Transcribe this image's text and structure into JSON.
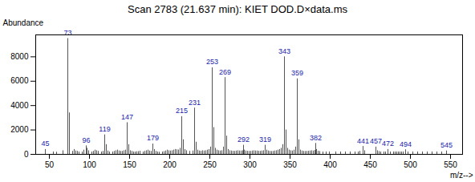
{
  "chart_data": {
    "type": "stem",
    "title": "Scan 2783 (21.637 min): KIET DOD.D×data.ms",
    "xlabel": "m/z-->",
    "ylabel": "Abundance",
    "color": "#555555",
    "xlim": [
      33,
      565
    ],
    "ylim": [
      0,
      9800
    ],
    "xticks": [
      50,
      100,
      150,
      200,
      250,
      300,
      350,
      400,
      450,
      500,
      550
    ],
    "yticks": [
      0,
      2000,
      4000,
      6000,
      8000
    ],
    "x": [
      45,
      55,
      59,
      67,
      73,
      75,
      79,
      81,
      83,
      85,
      87,
      91,
      93,
      96,
      97,
      99,
      103,
      105,
      107,
      109,
      111,
      115,
      117,
      119,
      121,
      123,
      125,
      129,
      131,
      133,
      135,
      137,
      139,
      141,
      143,
      145,
      147,
      149,
      151,
      153,
      155,
      157,
      159,
      161,
      163,
      167,
      169,
      171,
      173,
      175,
      177,
      179,
      181,
      183,
      185,
      187,
      191,
      193,
      195,
      197,
      199,
      201,
      203,
      205,
      207,
      209,
      211,
      213,
      215,
      217,
      219,
      221,
      225,
      229,
      231,
      233,
      235,
      237,
      239,
      241,
      243,
      245,
      247,
      249,
      251,
      253,
      255,
      257,
      259,
      261,
      263,
      265,
      267,
      269,
      271,
      273,
      275,
      277,
      279,
      281,
      283,
      285,
      287,
      289,
      291,
      292,
      293,
      295,
      297,
      299,
      301,
      303,
      305,
      307,
      309,
      311,
      313,
      315,
      317,
      319,
      321,
      323,
      325,
      327,
      329,
      331,
      333,
      335,
      337,
      339,
      341,
      343,
      345,
      347,
      349,
      351,
      353,
      355,
      357,
      359,
      361,
      363,
      365,
      367,
      369,
      371,
      373,
      375,
      377,
      379,
      381,
      382,
      383,
      385,
      387,
      391,
      395,
      399,
      407,
      413,
      419,
      425,
      431,
      435,
      437,
      441,
      443,
      457,
      459,
      461,
      463,
      467,
      469,
      472,
      475,
      479,
      481,
      483,
      485,
      487,
      489,
      491,
      494,
      497,
      503,
      509,
      515,
      521,
      527,
      533,
      539,
      545
    ],
    "values": [
      400,
      200,
      180,
      300,
      9500,
      3400,
      250,
      400,
      280,
      250,
      200,
      200,
      350,
      700,
      500,
      300,
      200,
      250,
      350,
      300,
      250,
      200,
      250,
      1600,
      800,
      280,
      200,
      200,
      250,
      300,
      350,
      280,
      250,
      250,
      300,
      350,
      2600,
      800,
      300,
      250,
      200,
      200,
      220,
      230,
      260,
      200,
      250,
      300,
      350,
      280,
      250,
      850,
      400,
      250,
      200,
      180,
      200,
      230,
      280,
      350,
      300,
      280,
      300,
      350,
      400,
      380,
      360,
      500,
      3100,
      1200,
      400,
      300,
      250,
      280,
      3800,
      1000,
      350,
      280,
      260,
      300,
      280,
      300,
      350,
      400,
      600,
      7100,
      2200,
      500,
      350,
      300,
      280,
      300,
      600,
      6300,
      1500,
      400,
      300,
      280,
      260,
      250,
      280,
      300,
      280,
      280,
      300,
      750,
      350,
      280,
      260,
      250,
      250,
      280,
      300,
      280,
      280,
      260,
      250,
      280,
      300,
      750,
      350,
      280,
      250,
      240,
      250,
      280,
      300,
      350,
      400,
      500,
      800,
      8000,
      2000,
      500,
      350,
      300,
      280,
      350,
      600,
      6200,
      1200,
      350,
      280,
      250,
      240,
      250,
      260,
      280,
      300,
      280,
      320,
      900,
      400,
      260,
      240,
      200,
      200,
      200,
      200,
      200,
      200,
      200,
      200,
      200,
      250,
      650,
      300,
      600,
      300,
      230,
      200,
      200,
      200,
      400,
      200,
      200,
      200,
      200,
      200,
      200,
      200,
      200,
      380,
      200,
      200,
      200,
      200,
      200,
      200,
      200,
      200,
      280
    ],
    "annotations": [
      {
        "x": 45,
        "y": 400,
        "text": "45"
      },
      {
        "x": 73,
        "y": 9500,
        "text": "73"
      },
      {
        "x": 96,
        "y": 700,
        "text": "96"
      },
      {
        "x": 119,
        "y": 1600,
        "text": "119"
      },
      {
        "x": 147,
        "y": 2600,
        "text": "147"
      },
      {
        "x": 179,
        "y": 850,
        "text": "179"
      },
      {
        "x": 215,
        "y": 3100,
        "text": "215"
      },
      {
        "x": 231,
        "y": 3800,
        "text": "231"
      },
      {
        "x": 253,
        "y": 7100,
        "text": "253"
      },
      {
        "x": 269,
        "y": 6300,
        "text": "269"
      },
      {
        "x": 292,
        "y": 750,
        "text": "292"
      },
      {
        "x": 319,
        "y": 750,
        "text": "319"
      },
      {
        "x": 343,
        "y": 8000,
        "text": "343"
      },
      {
        "x": 359,
        "y": 6200,
        "text": "359"
      },
      {
        "x": 382,
        "y": 900,
        "text": "382"
      },
      {
        "x": 441,
        "y": 650,
        "text": "441"
      },
      {
        "x": 457,
        "y": 600,
        "text": "457"
      },
      {
        "x": 472,
        "y": 400,
        "text": "472"
      },
      {
        "x": 494,
        "y": 380,
        "text": "494"
      },
      {
        "x": 545,
        "y": 280,
        "text": "545"
      }
    ]
  }
}
